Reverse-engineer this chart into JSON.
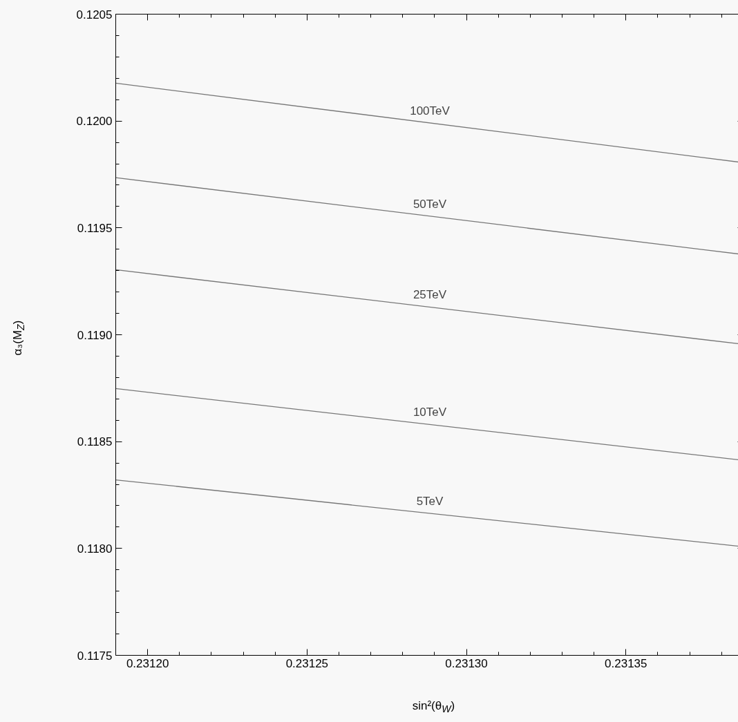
{
  "chart_data": {
    "type": "line",
    "xlabel": "sin²(θ$_{W}$)",
    "ylabel": "α₃(M$_{Z}$)",
    "x": [
      0.23119,
      0.231387
    ],
    "series": [
      {
        "name": "100TeV",
        "color": "#777777",
        "values": [
          0.120177,
          0.119805
        ]
      },
      {
        "name": "50TeV",
        "color": "#777777",
        "values": [
          0.119735,
          0.119375
        ]
      },
      {
        "name": "25TeV",
        "color": "#777777",
        "values": [
          0.119304,
          0.118955
        ]
      },
      {
        "name": "10TeV",
        "color": "#777777",
        "values": [
          0.118748,
          0.118412
        ]
      },
      {
        "name": "5TeV",
        "color": "#777777",
        "values": [
          0.118321,
          0.118008
        ]
      }
    ],
    "xlim": [
      0.23119,
      0.231387
    ],
    "ylim": [
      0.1175,
      0.1205
    ],
    "xticks": [
      {
        "value": 0.2312,
        "label": "0.23120"
      },
      {
        "value": 0.23125,
        "label": "0.23125"
      },
      {
        "value": 0.2313,
        "label": "0.23130"
      },
      {
        "value": 0.23135,
        "label": "0.23135"
      }
    ],
    "yticks": [
      {
        "value": 0.1175,
        "label": "0.1175"
      },
      {
        "value": 0.118,
        "label": "0.1180"
      },
      {
        "value": 0.1185,
        "label": "0.1185"
      },
      {
        "value": 0.119,
        "label": "0.1190"
      },
      {
        "value": 0.1195,
        "label": "0.1195"
      },
      {
        "value": 0.12,
        "label": "0.1200"
      },
      {
        "value": 0.1205,
        "label": "0.1205"
      }
    ],
    "line_style": "solid",
    "grid": false
  }
}
